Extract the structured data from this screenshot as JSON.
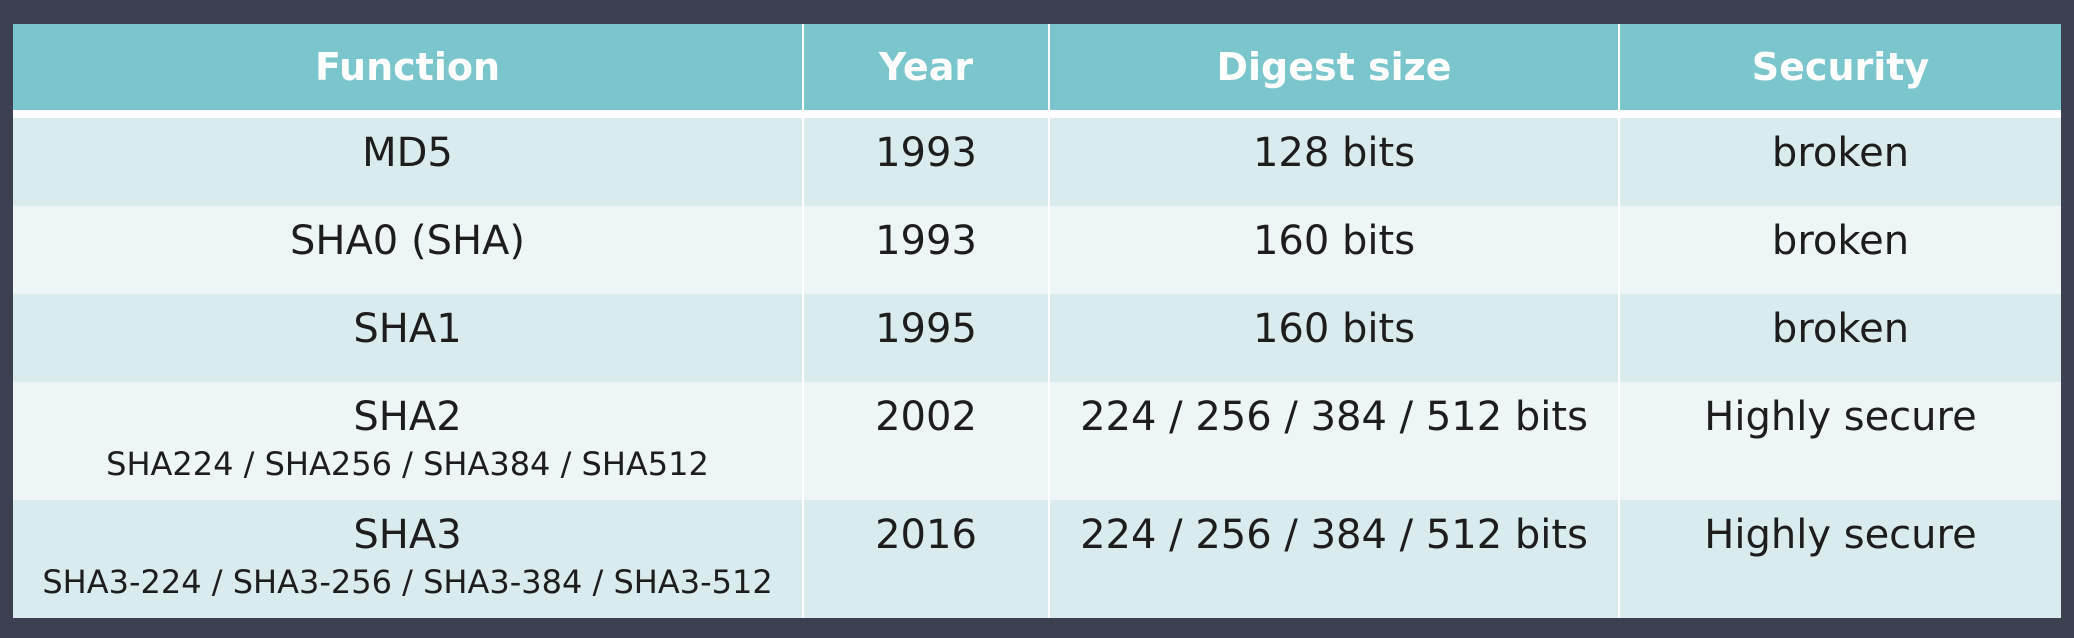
{
  "table": {
    "headers": [
      "Function",
      "Year",
      "Digest size",
      "Security"
    ],
    "rows": [
      {
        "function": "MD5",
        "variants": "",
        "year": "1993",
        "digest": "128 bits",
        "security": "broken"
      },
      {
        "function": "SHA0 (SHA)",
        "variants": "",
        "year": "1993",
        "digest": "160 bits",
        "security": "broken"
      },
      {
        "function": "SHA1",
        "variants": "",
        "year": "1995",
        "digest": "160 bits",
        "security": "broken"
      },
      {
        "function": "SHA2",
        "variants": "SHA224 / SHA256 / SHA384 / SHA512",
        "year": "2002",
        "digest": "224 / 256 / 384 / 512 bits",
        "security": "Highly secure"
      },
      {
        "function": "SHA3",
        "variants": "SHA3-224 / SHA3-256 / SHA3-384 / SHA3-512",
        "year": "2016",
        "digest": "224 / 256 / 384 / 512 bits",
        "security": "Highly secure"
      }
    ]
  },
  "colors": {
    "background": "#3c4051",
    "header": "#7bc6cd",
    "row_alt_a": "#d9ebed",
    "row_alt_b": "#eef5f6"
  }
}
